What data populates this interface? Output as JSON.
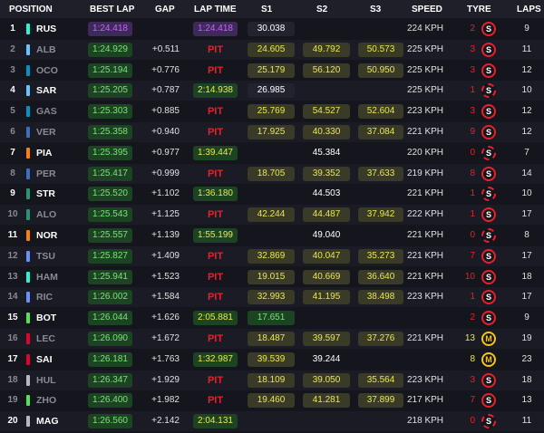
{
  "header": {
    "position": "POSITION",
    "best_lap": "BEST LAP",
    "gap": "GAP",
    "lap_time": "LAP TIME",
    "s1": "S1",
    "s2": "S2",
    "s3": "S3",
    "speed": "SPEED",
    "tyre": "TYRE",
    "laps": "LAPS"
  },
  "colors": {
    "red": "#e8202a",
    "yellow": "#e8e84b",
    "green": "#7be07b",
    "purple": "#d05dff",
    "background": "#15151e"
  },
  "rows": [
    {
      "pos": "1",
      "code": "RUS",
      "team": "#27f4d2",
      "best": "1:24.418",
      "best_purple": true,
      "gap": "",
      "lap": "1:24.418",
      "lap_type": "purple",
      "s1": "30.038",
      "s1_type": "white",
      "s2": "",
      "s2_type": "",
      "s3": "",
      "s3_type": "",
      "speed": "224 KPH",
      "tcount": "2",
      "tcolor": "red",
      "tyre": "S",
      "tyre_dash": false,
      "laps": "9",
      "dim": false
    },
    {
      "pos": "2",
      "code": "ALB",
      "team": "#64c4ff",
      "best": "1:24.929",
      "best_purple": false,
      "gap": "+0.511",
      "lap": "PIT",
      "lap_type": "pit",
      "s1": "24.605",
      "s1_type": "yellow",
      "s2": "49.792",
      "s2_type": "yellow",
      "s3": "50.573",
      "s3_type": "yellow",
      "speed": "225 KPH",
      "tcount": "3",
      "tcolor": "red",
      "tyre": "S",
      "tyre_dash": false,
      "laps": "11",
      "dim": true
    },
    {
      "pos": "3",
      "code": "OCO",
      "team": "#0093cc",
      "best": "1:25.194",
      "best_purple": false,
      "gap": "+0.776",
      "lap": "PIT",
      "lap_type": "pit",
      "s1": "25.179",
      "s1_type": "yellow",
      "s2": "56.120",
      "s2_type": "yellow",
      "s3": "50.950",
      "s3_type": "yellow",
      "speed": "225 KPH",
      "tcount": "3",
      "tcolor": "red",
      "tyre": "S",
      "tyre_dash": false,
      "laps": "12",
      "dim": true
    },
    {
      "pos": "4",
      "code": "SAR",
      "team": "#64c4ff",
      "best": "1:25.205",
      "best_purple": false,
      "gap": "+0.787",
      "lap": "2:14.938",
      "lap_type": "yellow",
      "s1": "26.985",
      "s1_type": "white",
      "s2": "",
      "s2_type": "",
      "s3": "",
      "s3_type": "",
      "speed": "225 KPH",
      "tcount": "1",
      "tcolor": "red",
      "tyre": "S",
      "tyre_dash": true,
      "laps": "10",
      "dim": false
    },
    {
      "pos": "5",
      "code": "GAS",
      "team": "#0093cc",
      "best": "1:25.303",
      "best_purple": false,
      "gap": "+0.885",
      "lap": "PIT",
      "lap_type": "pit",
      "s1": "25.769",
      "s1_type": "yellow",
      "s2": "54.527",
      "s2_type": "yellow",
      "s3": "52.604",
      "s3_type": "yellow",
      "speed": "223 KPH",
      "tcount": "3",
      "tcolor": "red",
      "tyre": "S",
      "tyre_dash": false,
      "laps": "12",
      "dim": true
    },
    {
      "pos": "6",
      "code": "VER",
      "team": "#3671c6",
      "best": "1:25.358",
      "best_purple": false,
      "gap": "+0.940",
      "lap": "PIT",
      "lap_type": "pit",
      "s1": "17.925",
      "s1_type": "yellow",
      "s2": "40.330",
      "s2_type": "yellow",
      "s3": "37.084",
      "s3_type": "yellow",
      "speed": "221 KPH",
      "tcount": "9",
      "tcolor": "red",
      "tyre": "S",
      "tyre_dash": false,
      "laps": "12",
      "dim": true
    },
    {
      "pos": "7",
      "code": "PIA",
      "team": "#ff8000",
      "best": "1:25.395",
      "best_purple": false,
      "gap": "+0.977",
      "lap": "1:39.447",
      "lap_type": "yellow",
      "s1": "",
      "s1_type": "none",
      "s2": "45.384",
      "s2_type": "white",
      "s3": "",
      "s3_type": "",
      "speed": "220 KPH",
      "tcount": "0",
      "tcolor": "red",
      "tyre": "S",
      "tyre_dash": true,
      "laps": "7",
      "dim": false
    },
    {
      "pos": "8",
      "code": "PER",
      "team": "#3671c6",
      "best": "1:25.417",
      "best_purple": false,
      "gap": "+0.999",
      "lap": "PIT",
      "lap_type": "pit",
      "s1": "18.705",
      "s1_type": "yellow",
      "s2": "39.352",
      "s2_type": "yellow",
      "s3": "37.633",
      "s3_type": "yellow",
      "speed": "219 KPH",
      "tcount": "8",
      "tcolor": "red",
      "tyre": "S",
      "tyre_dash": false,
      "laps": "14",
      "dim": true
    },
    {
      "pos": "9",
      "code": "STR",
      "team": "#229971",
      "best": "1:25.520",
      "best_purple": false,
      "gap": "+1.102",
      "lap": "1:36.180",
      "lap_type": "yellow",
      "s1": "",
      "s1_type": "none",
      "s2": "44.503",
      "s2_type": "white",
      "s3": "",
      "s3_type": "",
      "speed": "221 KPH",
      "tcount": "1",
      "tcolor": "red",
      "tyre": "S",
      "tyre_dash": true,
      "laps": "10",
      "dim": false
    },
    {
      "pos": "10",
      "code": "ALO",
      "team": "#229971",
      "best": "1:25.543",
      "best_purple": false,
      "gap": "+1.125",
      "lap": "PIT",
      "lap_type": "pit",
      "s1": "42.244",
      "s1_type": "yellow",
      "s2": "44.487",
      "s2_type": "yellow",
      "s3": "37.942",
      "s3_type": "yellow",
      "speed": "222 KPH",
      "tcount": "1",
      "tcolor": "red",
      "tyre": "S",
      "tyre_dash": false,
      "laps": "17",
      "dim": true
    },
    {
      "pos": "11",
      "code": "NOR",
      "team": "#ff8000",
      "best": "1:25.557",
      "best_purple": false,
      "gap": "+1.139",
      "lap": "1:55.199",
      "lap_type": "yellow",
      "s1": "",
      "s1_type": "none",
      "s2": "49.040",
      "s2_type": "white",
      "s3": "",
      "s3_type": "",
      "speed": "221 KPH",
      "tcount": "0",
      "tcolor": "red",
      "tyre": "S",
      "tyre_dash": true,
      "laps": "8",
      "dim": false
    },
    {
      "pos": "12",
      "code": "TSU",
      "team": "#6692ff",
      "best": "1:25.827",
      "best_purple": false,
      "gap": "+1.409",
      "lap": "PIT",
      "lap_type": "pit",
      "s1": "32.869",
      "s1_type": "yellow",
      "s2": "40.047",
      "s2_type": "yellow",
      "s3": "35.273",
      "s3_type": "yellow",
      "speed": "221 KPH",
      "tcount": "7",
      "tcolor": "red",
      "tyre": "S",
      "tyre_dash": false,
      "laps": "17",
      "dim": true
    },
    {
      "pos": "13",
      "code": "HAM",
      "team": "#27f4d2",
      "best": "1:25.941",
      "best_purple": false,
      "gap": "+1.523",
      "lap": "PIT",
      "lap_type": "pit",
      "s1": "19.015",
      "s1_type": "yellow",
      "s2": "40.669",
      "s2_type": "yellow",
      "s3": "36.640",
      "s3_type": "yellow",
      "speed": "221 KPH",
      "tcount": "10",
      "tcolor": "red",
      "tyre": "S",
      "tyre_dash": false,
      "laps": "18",
      "dim": true
    },
    {
      "pos": "14",
      "code": "RIC",
      "team": "#6692ff",
      "best": "1:26.002",
      "best_purple": false,
      "gap": "+1.584",
      "lap": "PIT",
      "lap_type": "pit",
      "s1": "32.993",
      "s1_type": "yellow",
      "s2": "41.195",
      "s2_type": "yellow",
      "s3": "38.498",
      "s3_type": "yellow",
      "speed": "223 KPH",
      "tcount": "1",
      "tcolor": "red",
      "tyre": "S",
      "tyre_dash": false,
      "laps": "17",
      "dim": true
    },
    {
      "pos": "15",
      "code": "BOT",
      "team": "#52e252",
      "best": "1:26.044",
      "best_purple": false,
      "gap": "+1.626",
      "lap": "2:05.881",
      "lap_type": "yellow",
      "s1": "17.651",
      "s1_type": "green",
      "s2": "",
      "s2_type": "",
      "s3": "",
      "s3_type": "",
      "speed": "",
      "tcount": "2",
      "tcolor": "red",
      "tyre": "S",
      "tyre_dash": false,
      "laps": "9",
      "dim": false
    },
    {
      "pos": "16",
      "code": "LEC",
      "team": "#e8002d",
      "best": "1:26.090",
      "best_purple": false,
      "gap": "+1.672",
      "lap": "PIT",
      "lap_type": "pit",
      "s1": "18.487",
      "s1_type": "yellow",
      "s2": "39.597",
      "s2_type": "yellow",
      "s3": "37.276",
      "s3_type": "yellow",
      "speed": "221 KPH",
      "tcount": "13",
      "tcolor": "yellow",
      "tyre": "M",
      "tyre_dash": false,
      "laps": "19",
      "dim": true
    },
    {
      "pos": "17",
      "code": "SAI",
      "team": "#e8002d",
      "best": "1:26.181",
      "best_purple": false,
      "gap": "+1.763",
      "lap": "1:32.987",
      "lap_type": "yellow",
      "s1": "39.539",
      "s1_type": "yellow",
      "s2": "39.244",
      "s2_type": "white",
      "s3": "",
      "s3_type": "",
      "speed": "",
      "tcount": "8",
      "tcolor": "yellow",
      "tyre": "M",
      "tyre_dash": false,
      "laps": "23",
      "dim": false
    },
    {
      "pos": "18",
      "code": "HUL",
      "team": "#b6babd",
      "best": "1:26.347",
      "best_purple": false,
      "gap": "+1.929",
      "lap": "PIT",
      "lap_type": "pit",
      "s1": "18.109",
      "s1_type": "yellow",
      "s2": "39.050",
      "s2_type": "yellow",
      "s3": "35.564",
      "s3_type": "yellow",
      "speed": "223 KPH",
      "tcount": "3",
      "tcolor": "red",
      "tyre": "S",
      "tyre_dash": false,
      "laps": "18",
      "dim": true
    },
    {
      "pos": "19",
      "code": "ZHO",
      "team": "#52e252",
      "best": "1:26.400",
      "best_purple": false,
      "gap": "+1.982",
      "lap": "PIT",
      "lap_type": "pit",
      "s1": "19.460",
      "s1_type": "yellow",
      "s2": "41.281",
      "s2_type": "yellow",
      "s3": "37.899",
      "s3_type": "yellow",
      "speed": "217 KPH",
      "tcount": "7",
      "tcolor": "red",
      "tyre": "S",
      "tyre_dash": false,
      "laps": "13",
      "dim": true
    },
    {
      "pos": "20",
      "code": "MAG",
      "team": "#b6babd",
      "best": "1:26.560",
      "best_purple": false,
      "gap": "+2.142",
      "lap": "2:04.131",
      "lap_type": "yellow",
      "s1": "",
      "s1_type": "none",
      "s2": "",
      "s2_type": "",
      "s3": "",
      "s3_type": "",
      "speed": "218 KPH",
      "tcount": "0",
      "tcolor": "red",
      "tyre": "S",
      "tyre_dash": true,
      "laps": "11",
      "dim": false
    }
  ]
}
